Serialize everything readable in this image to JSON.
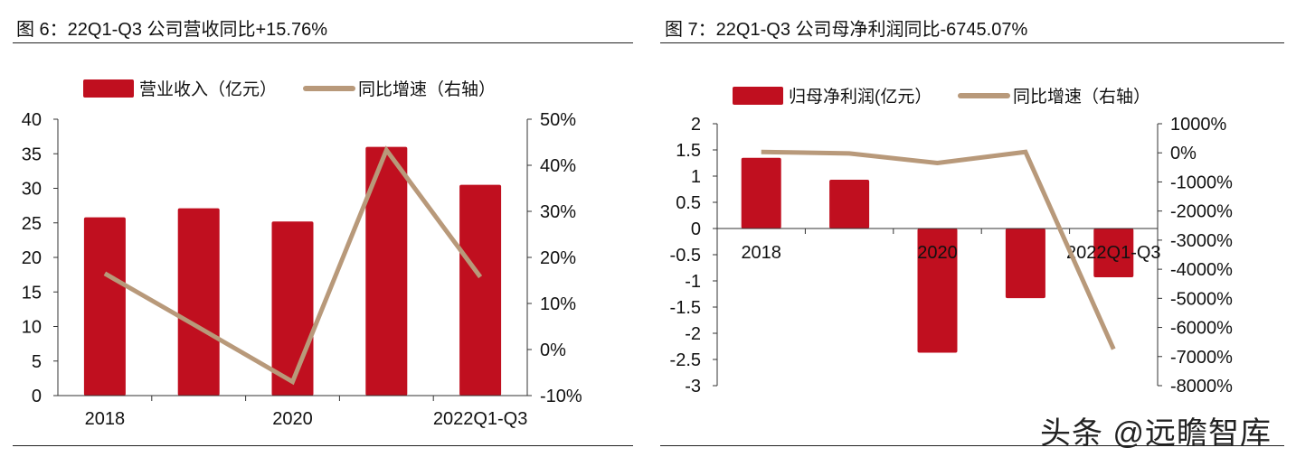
{
  "watermark": "头条 @远瞻智库",
  "colors": {
    "bar": "#c00f1f",
    "line": "#b8997a"
  },
  "chart_data": [
    {
      "type": "bar+line",
      "title": "图 6：22Q1-Q3 公司营收同比+15.76%",
      "categories": [
        "2018",
        "",
        "2020",
        "",
        "2022Q1-Q3"
      ],
      "series": [
        {
          "name": "营业收入（亿元）",
          "type": "bar",
          "axis": "left",
          "values": [
            25.8,
            27.1,
            25.2,
            36.0,
            30.5
          ]
        },
        {
          "name": "同比增速（右轴）",
          "type": "line",
          "axis": "right",
          "values": [
            16.5,
            4.8,
            -7.0,
            43.3,
            15.76
          ]
        }
      ],
      "ylim": [
        0,
        40
      ],
      "yticks": [
        "0",
        "5",
        "10",
        "15",
        "20",
        "25",
        "30",
        "35",
        "40"
      ],
      "y2lim": [
        -10,
        50
      ],
      "y2ticks": [
        "-10%",
        "0%",
        "10%",
        "20%",
        "30%",
        "40%",
        "50%"
      ],
      "legend": "top"
    },
    {
      "type": "bar+line",
      "title": "图 7：22Q1-Q3 公司母净利润同比-6745.07%",
      "categories": [
        "2018",
        "",
        "2020",
        "",
        "2022Q1-Q3"
      ],
      "series": [
        {
          "name": "归母净利润(亿元）",
          "type": "bar",
          "axis": "left",
          "values": [
            1.35,
            0.93,
            -2.37,
            -1.33,
            -0.93
          ]
        },
        {
          "name": "同比增速（右轴）",
          "type": "line",
          "axis": "right",
          "values": [
            30,
            -20,
            -350,
            30,
            -6745.07
          ]
        }
      ],
      "ylim": [
        -3,
        2
      ],
      "yticks": [
        "-3",
        "-2.5",
        "-2",
        "-1.5",
        "-1",
        "-0.5",
        "0",
        "0.5",
        "1",
        "1.5",
        "2"
      ],
      "y2lim": [
        -8000,
        1000
      ],
      "y2ticks": [
        "-8000%",
        "-7000%",
        "-6000%",
        "-5000%",
        "-4000%",
        "-3000%",
        "-2000%",
        "-1000%",
        "0%",
        "1000%"
      ],
      "legend": "top"
    }
  ]
}
